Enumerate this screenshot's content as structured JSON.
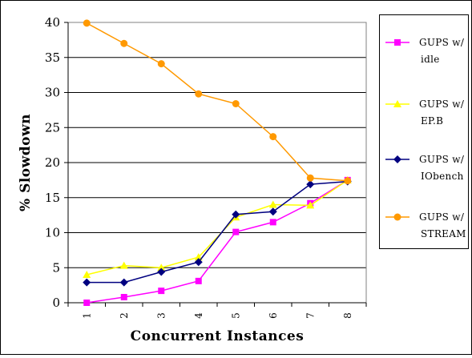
{
  "chart_data": {
    "type": "line",
    "title": "",
    "xlabel": "Concurrent Instances",
    "ylabel": "% Slowdown",
    "categories": [
      "1",
      "2",
      "3",
      "4",
      "5",
      "6",
      "7",
      "8"
    ],
    "ylim": [
      0,
      40
    ],
    "yticks": [
      "0",
      "5",
      "10",
      "15",
      "20",
      "25",
      "30",
      "35",
      "40"
    ],
    "grid": "horizontal",
    "legend_position": "right",
    "series": [
      {
        "name": "GUPS w/ idle",
        "legend_lines": [
          "GUPS w/",
          "idle"
        ],
        "color": "#ff00ff",
        "marker": "square",
        "values": [
          0,
          0.8,
          1.7,
          3.1,
          10.1,
          11.5,
          14.2,
          17.5
        ]
      },
      {
        "name": "GUPS w/ EP.B",
        "legend_lines": [
          "GUPS w/",
          "EP.B"
        ],
        "color": "#ffff00",
        "marker": "triangle",
        "values": [
          4.0,
          5.3,
          5.0,
          6.5,
          12.2,
          14.0,
          13.9,
          17.5
        ]
      },
      {
        "name": "GUPS w/ IObench",
        "legend_lines": [
          "GUPS w/",
          "IObench"
        ],
        "color": "#000080",
        "marker": "diamond",
        "values": [
          2.9,
          2.9,
          4.4,
          5.8,
          12.6,
          13.0,
          16.9,
          17.3
        ]
      },
      {
        "name": "GUPS w/ STREAM",
        "legend_lines": [
          "GUPS w/",
          "STREAM"
        ],
        "color": "#ff9900",
        "marker": "circle",
        "values": [
          39.9,
          37.0,
          34.1,
          29.8,
          28.4,
          23.7,
          17.8,
          17.4
        ]
      }
    ]
  }
}
